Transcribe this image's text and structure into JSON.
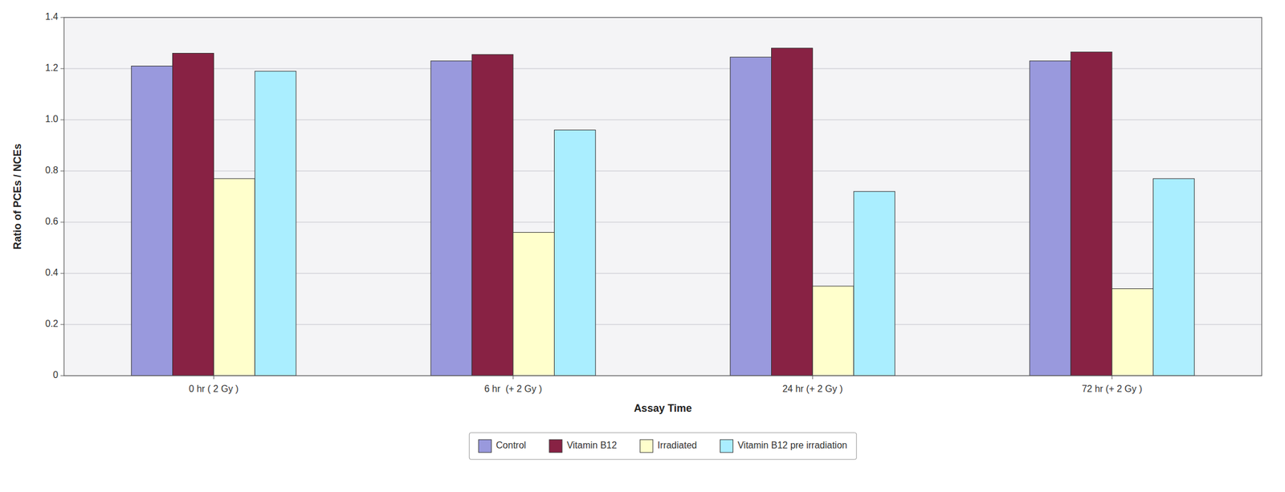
{
  "chart_data": {
    "type": "bar",
    "categories": [
      "0 hr ( 2 Gy )",
      "6 hr  (+ 2 Gy )",
      "24 hr (+ 2 Gy )",
      "72 hr (+ 2 Gy )"
    ],
    "series": [
      {
        "name": "Control",
        "color": "#9999dd",
        "values": [
          1.21,
          1.23,
          1.245,
          1.23
        ]
      },
      {
        "name": "Vitamin B12",
        "color": "#882244",
        "values": [
          1.26,
          1.255,
          1.28,
          1.265
        ]
      },
      {
        "name": "Irradiated",
        "color": "#ffffcc",
        "values": [
          0.77,
          0.56,
          0.35,
          0.34
        ]
      },
      {
        "name": "Vitamin B12 pre irradiation",
        "color": "#aaeeff",
        "values": [
          1.19,
          0.96,
          0.72,
          0.77
        ]
      }
    ],
    "xlabel": "Assay Time",
    "ylabel": "Ratio of PCEs / NCEs",
    "ylim": [
      0,
      1.4
    ],
    "yticks": [
      0,
      0.2,
      0.4,
      0.6,
      0.8,
      {
        "value": 1.0,
        "label": "1.0"
      },
      1.2,
      1.4
    ],
    "grid": true,
    "legend": "bottom"
  }
}
